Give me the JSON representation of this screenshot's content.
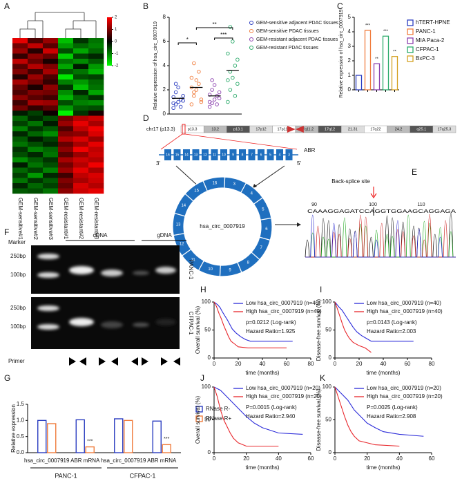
{
  "panel_labels": [
    "A",
    "B",
    "C",
    "D",
    "E",
    "F",
    "G",
    "H",
    "I",
    "J",
    "K"
  ],
  "chart_data": [
    {
      "type": "heatmap",
      "columns": [
        "GEM-sensitive#1",
        "GEM-sensitive#2",
        "GEM-sensitive#3",
        "GEM-resistant#1",
        "GEM-resistant#2",
        "GEM-resistant#3"
      ],
      "colorbar_lim": [
        -2,
        2
      ],
      "colorbar_ticks": [
        2,
        1,
        0,
        -1,
        -2
      ],
      "rows": [
        [
          1.8,
          0.6,
          1.2,
          -1.5,
          -0.4,
          -0.9
        ],
        [
          0.9,
          1.5,
          0.7,
          -1.2,
          -0.8,
          -1.0
        ],
        [
          1.2,
          0.3,
          1.6,
          -0.6,
          -1.3,
          -0.8
        ],
        [
          0.4,
          1.1,
          0.8,
          -1.6,
          -0.5,
          -0.3
        ],
        [
          1.5,
          0.8,
          0.2,
          -0.9,
          -1.1,
          -0.7
        ],
        [
          0.7,
          1.4,
          1.0,
          -1.3,
          -0.2,
          -1.2
        ],
        [
          1.0,
          0.5,
          1.3,
          -0.7,
          -0.9,
          -1.4
        ],
        [
          0.3,
          1.2,
          0.6,
          -1.8,
          -0.6,
          -0.5
        ],
        [
          1.3,
          0.9,
          0.4,
          -1.0,
          -1.2,
          -0.8
        ],
        [
          0.8,
          0.2,
          1.1,
          -0.4,
          -1.5,
          -0.9
        ],
        [
          0.6,
          1.0,
          0.9,
          -1.1,
          -0.3,
          -1.3
        ],
        [
          1.1,
          0.7,
          0.5,
          -1.4,
          -0.8,
          -0.4
        ],
        [
          0.5,
          1.3,
          1.2,
          -0.6,
          -1.0,
          -1.1
        ],
        [
          0.9,
          0.4,
          0.7,
          -1.2,
          -0.7,
          -0.6
        ],
        [
          -0.2,
          -0.5,
          0.1,
          -1.9,
          -0.4,
          0.2
        ],
        [
          -0.8,
          -0.3,
          -0.6,
          0.9,
          1.4,
          1.6
        ],
        [
          -0.5,
          -0.9,
          -0.2,
          1.2,
          1.8,
          1.3
        ],
        [
          -1.0,
          -0.4,
          -0.7,
          0.6,
          1.5,
          1.9
        ],
        [
          -0.3,
          -0.8,
          -1.1,
          1.0,
          1.1,
          1.7
        ],
        [
          -0.7,
          -0.2,
          -0.5,
          1.4,
          1.7,
          1.2
        ],
        [
          -0.9,
          -0.6,
          -0.3,
          0.8,
          1.3,
          1.8
        ],
        [
          -0.4,
          -1.0,
          -0.8,
          1.1,
          1.9,
          1.5
        ],
        [
          -0.6,
          -0.3,
          -0.9,
          0.7,
          1.2,
          1.6
        ],
        [
          -1.1,
          -0.7,
          -0.4,
          1.3,
          1.6,
          1.4
        ],
        [
          -0.2,
          -0.9,
          -0.6,
          0.9,
          1.4,
          1.9
        ],
        [
          -0.8,
          -0.5,
          -1.0,
          1.2,
          1.8,
          1.3
        ],
        [
          -0.5,
          -1.2,
          -0.3,
          0.5,
          1.5,
          1.7
        ],
        [
          -0.9,
          -0.4,
          -0.7,
          1.0,
          1.3,
          1.6
        ],
        [
          -0.3,
          -0.8,
          -0.5,
          0.8,
          1.7,
          1.4
        ],
        [
          -0.7,
          -0.6,
          -0.9,
          1.1,
          1.6,
          1.8
        ]
      ]
    },
    {
      "type": "dotplot",
      "ylabel": "Relative expression of hsa_circ_0007919",
      "ylim": [
        0,
        8
      ],
      "yticks": [
        0,
        2,
        4,
        6,
        8
      ],
      "series": [
        {
          "name": "GEM-sensitive adjacent PDAC tissues",
          "color": "#2a3cc0",
          "values": [
            0.5,
            0.8,
            1.0,
            1.2,
            1.5,
            0.9,
            1.8,
            2.2,
            0.6,
            1.1,
            1.4,
            2.5
          ],
          "mean": 1.3
        },
        {
          "name": "GEM-sensitive PDAC tissues",
          "color": "#f07c3c",
          "values": [
            0.8,
            1.5,
            2.0,
            2.5,
            1.2,
            3.0,
            1.8,
            2.8,
            3.5,
            1.0,
            2.2,
            4.2
          ],
          "mean": 2.2
        },
        {
          "name": "GEM-resistant adjacent PDAC tissues",
          "color": "#8a3fae",
          "values": [
            0.6,
            0.9,
            1.2,
            1.5,
            1.8,
            1.0,
            2.0,
            2.4,
            0.8,
            1.3,
            1.6,
            2.8
          ],
          "mean": 1.5
        },
        {
          "name": "GEM-resistant PDAC tissues",
          "color": "#2aaa6a",
          "values": [
            1.0,
            2.0,
            3.0,
            4.0,
            2.5,
            5.0,
            3.5,
            6.0,
            1.5,
            4.5,
            2.8,
            7.2
          ],
          "mean": 3.6
        }
      ],
      "significance": [
        "*",
        "**",
        "***"
      ]
    },
    {
      "type": "bar",
      "ylabel": "Relative expression of hsa_circ_0007919",
      "categories": [
        "hTERT-HPNE",
        "PANC-1",
        "MIA Paca-2",
        "CFPAC-1",
        "BxPC-3"
      ],
      "colors": [
        "#2a3cc0",
        "#f07c3c",
        "#8a3fae",
        "#2aaa6a",
        "#d4a020"
      ],
      "values": [
        1.0,
        4.1,
        1.8,
        3.7,
        2.3
      ],
      "significance": [
        "***",
        "**",
        "***",
        "**"
      ],
      "ylim": [
        0,
        5
      ],
      "yticks": [
        0,
        1,
        2,
        3,
        4,
        5
      ]
    },
    {
      "type": "grouped_bar",
      "ylabel": "Relative expression",
      "categories": [
        "hsa_circ_0007919",
        "ABR mRNA",
        "hsa_circ_0007919",
        "ABR mRNA"
      ],
      "groups": [
        "PANC-1",
        "CFPAC-1"
      ],
      "series": [
        {
          "name": "RNase R-",
          "color": "#2a3cc0",
          "values": [
            1.0,
            1.02,
            1.05,
            0.98
          ]
        },
        {
          "name": "RNase R+",
          "color": "#f07c3c",
          "values": [
            0.9,
            0.18,
            1.0,
            0.25
          ]
        }
      ],
      "significance": [
        "***",
        "***"
      ],
      "ylim": [
        0,
        1.5
      ],
      "yticks": [
        {
          "value": 0,
          "label": "0.0"
        },
        0.5,
        {
          "value": 1,
          "label": "1.0"
        },
        1.5
      ]
    },
    {
      "type": "km",
      "ylabel": "Overall survival (%)",
      "xlabel": "time (months)",
      "xlim": [
        0,
        80
      ],
      "xticks": [
        0,
        20,
        40,
        60,
        80
      ],
      "ylim": [
        0,
        100
      ],
      "yticks": [
        0,
        50,
        100
      ],
      "annotations": [
        "p=0.0212 (Log-rank)",
        "Hazard Ratio=1.925"
      ],
      "series": [
        {
          "name": "Low hsa_circ_0007919 (n=40)",
          "color": "#2b2bd9",
          "x": [
            0,
            3,
            5,
            7,
            9,
            11,
            13,
            15,
            18,
            22,
            26,
            30,
            65
          ],
          "values": [
            100,
            95,
            90,
            82,
            75,
            68,
            60,
            52,
            45,
            38,
            33,
            30,
            30
          ]
        },
        {
          "name": "High hsa_circ_0007919 (n=40)",
          "color": "#e8262b",
          "x": [
            0,
            2,
            4,
            6,
            8,
            10,
            12,
            14,
            17,
            20,
            28,
            60
          ],
          "values": [
            100,
            92,
            80,
            70,
            58,
            48,
            38,
            30,
            25,
            20,
            18,
            18
          ]
        }
      ]
    },
    {
      "type": "km",
      "ylabel": "Disease-free survival (%)",
      "xlabel": "time (months)",
      "xlim": [
        0,
        80
      ],
      "xticks": [
        0,
        20,
        40,
        60,
        80
      ],
      "ylim": [
        0,
        100
      ],
      "yticks": [
        0,
        50,
        100
      ],
      "annotations": [
        "p=0.0143 (Log-rank)",
        "Hazard Ratio=2.003"
      ],
      "series": [
        {
          "name": "Low hsa_circ_0007919 (n=40)",
          "color": "#2b2bd9",
          "x": [
            0,
            3,
            6,
            9,
            12,
            15,
            18,
            22,
            26,
            30,
            65
          ],
          "values": [
            100,
            92,
            85,
            75,
            65,
            55,
            47,
            40,
            35,
            30,
            30
          ]
        },
        {
          "name": "High hsa_circ_0007919 (n=40)",
          "color": "#e8262b",
          "x": [
            0,
            2,
            4,
            6,
            8,
            10,
            12,
            15,
            20,
            25,
            30
          ],
          "values": [
            100,
            88,
            75,
            62,
            50,
            42,
            35,
            28,
            22,
            18,
            10
          ]
        }
      ]
    },
    {
      "type": "km",
      "ylabel": "Overall survival (%)",
      "xlabel": "time (months)",
      "xlim": [
        0,
        60
      ],
      "xticks": [
        0,
        20,
        40,
        60
      ],
      "ylim": [
        0,
        100
      ],
      "yticks": [
        0,
        50,
        100
      ],
      "annotations": [
        "P=0.0015 (Log-rank)",
        "Hazard Ratio=2.940"
      ],
      "series": [
        {
          "name": "Low hsa_circ_0007919 (n=20)",
          "color": "#2b2bd9",
          "x": [
            0,
            4,
            8,
            12,
            16,
            20,
            25,
            30,
            40,
            55
          ],
          "values": [
            100,
            95,
            85,
            75,
            65,
            55,
            45,
            38,
            30,
            28
          ]
        },
        {
          "name": "High hsa_circ_0007919 (n=20)",
          "color": "#e8262b",
          "x": [
            0,
            2,
            4,
            6,
            8,
            10,
            12,
            15,
            20,
            40
          ],
          "values": [
            100,
            85,
            65,
            50,
            40,
            30,
            22,
            15,
            10,
            10
          ]
        }
      ]
    },
    {
      "type": "km",
      "ylabel": "Disease-free survival (%)",
      "xlabel": "time (months)",
      "xlim": [
        0,
        60
      ],
      "xticks": [
        0,
        20,
        40,
        60
      ],
      "ylim": [
        0,
        100
      ],
      "yticks": [
        0,
        50,
        100
      ],
      "annotations": [
        "P=0.0025 (Log-rank)",
        "Hazard Ratio=2.908"
      ],
      "series": [
        {
          "name": "Low hsa_circ_0007919 (n=20)",
          "color": "#2b2bd9",
          "x": [
            0,
            4,
            8,
            12,
            16,
            20,
            25,
            30,
            40,
            55
          ],
          "values": [
            100,
            90,
            80,
            65,
            55,
            45,
            38,
            32,
            28,
            25
          ]
        },
        {
          "name": "High hsa_circ_0007919 (n=20)",
          "color": "#e8262b",
          "x": [
            0,
            2,
            4,
            6,
            8,
            10,
            12,
            15,
            25,
            40
          ],
          "values": [
            100,
            85,
            70,
            55,
            42,
            32,
            25,
            18,
            12,
            10
          ]
        }
      ]
    }
  ],
  "diagram": {
    "chromosome": "chr17 (p13.3)",
    "bands": [
      "p13.3",
      "13.2",
      "p13.1",
      "17p12",
      "17p11.2",
      "17q11.2",
      "17q12",
      "21.31",
      "17q22",
      "24.2",
      "q25.1",
      "17q25.3"
    ],
    "exons": [
      16,
      15,
      14,
      13,
      12,
      11,
      10,
      9,
      8,
      7,
      6,
      5,
      4,
      3
    ],
    "gene": "ABR",
    "ends": [
      "3'",
      "5'"
    ],
    "circle_exons": [
      3,
      4,
      5,
      6,
      7,
      8,
      9,
      10,
      11,
      12,
      13,
      14,
      15,
      16
    ],
    "circle_name": "hsa_circ_0007919"
  },
  "sequencing": {
    "title": "Back-splice site",
    "positions": [
      90,
      100,
      110
    ],
    "sequence": "CAAAGGAGATCCAGGTGGAAGCAGGAGA"
  },
  "gel": {
    "marker": "Marker",
    "groups": [
      "cDNA",
      "gDNA"
    ],
    "sizes": [
      "250bp",
      "100bp"
    ],
    "cells": [
      "PANC-1",
      "CFPAC-1"
    ],
    "primer": "Primer"
  }
}
